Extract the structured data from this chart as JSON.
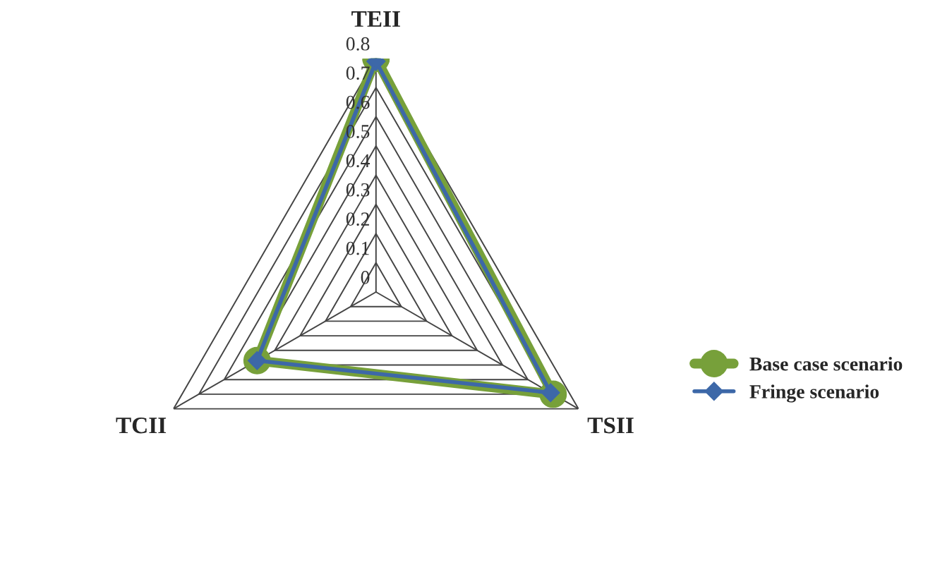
{
  "chart_data": {
    "type": "radar",
    "categories": [
      "TEII",
      "TSII",
      "TCII"
    ],
    "series": [
      {
        "name": "Base case scenario",
        "color": "#77a03a",
        "values": [
          0.8,
          0.7,
          0.47
        ],
        "marker": "circle"
      },
      {
        "name": "Fringe scenario",
        "color": "#3d68a8",
        "values": [
          0.79,
          0.69,
          0.47
        ],
        "marker": "diamond"
      }
    ],
    "ylim": [
      0,
      0.8
    ],
    "yticks": [
      0,
      0.1,
      0.2,
      0.3,
      0.4,
      0.5,
      0.6,
      0.7,
      0.8
    ],
    "legend": "right"
  }
}
